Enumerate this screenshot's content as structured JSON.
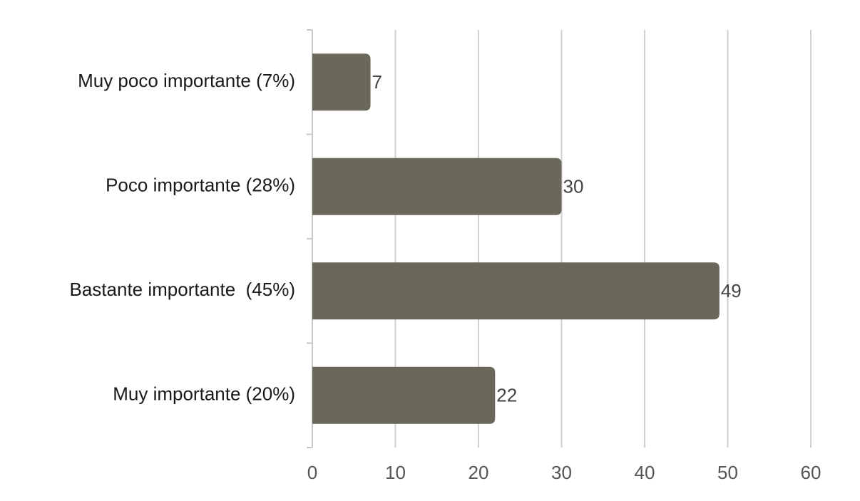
{
  "chart_data": {
    "type": "bar",
    "orientation": "horizontal",
    "categories": [
      "Muy poco importante (7%)",
      "Poco importante (28%)",
      "Bastante importante  (45%)",
      "Muy importante (20%)"
    ],
    "values": [
      7,
      30,
      49,
      22
    ],
    "color": "#6b685b",
    "xlim": [
      0,
      60
    ],
    "xticks": [
      0,
      10,
      20,
      30,
      40,
      50,
      60
    ],
    "grid": true
  }
}
